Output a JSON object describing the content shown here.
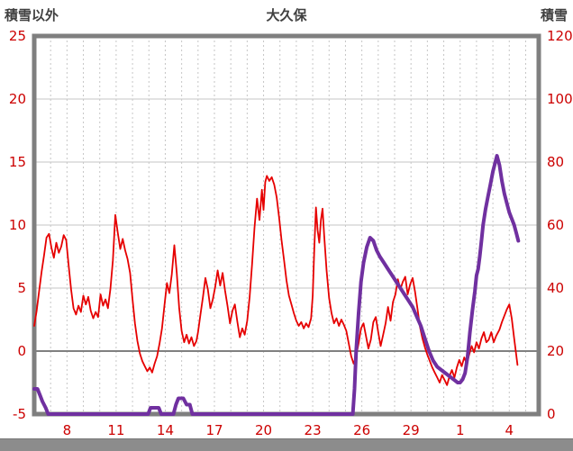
{
  "header": {
    "left_axis_title": "積雪以外",
    "title": "大久保",
    "right_axis_title": "積雪"
  },
  "chart_data": {
    "type": "line",
    "title": "大久保",
    "grid": true,
    "legend": "none",
    "x_axis": {
      "min": 6,
      "max": 36.8,
      "gridline_step_days": 1,
      "tick_labels": [
        {
          "day": 8,
          "label": "8"
        },
        {
          "day": 11,
          "label": "11"
        },
        {
          "day": 14,
          "label": "14"
        },
        {
          "day": 17,
          "label": "17"
        },
        {
          "day": 20,
          "label": "20"
        },
        {
          "day": 23,
          "label": "23"
        },
        {
          "day": 26,
          "label": "26"
        },
        {
          "day": 29,
          "label": "29"
        },
        {
          "day": 32,
          "label": "1"
        },
        {
          "day": 35,
          "label": "4"
        }
      ]
    },
    "left_axis": {
      "title": "積雪以外",
      "min": -5,
      "max": 25,
      "ticks": [
        -5,
        0,
        5,
        10,
        15,
        20,
        25
      ]
    },
    "right_axis": {
      "title": "積雪",
      "min": 0,
      "max": 120,
      "ticks": [
        0,
        20,
        40,
        60,
        80,
        100,
        120
      ]
    },
    "colors": {
      "grid": "#c6c6c6",
      "zero_line": "#808080",
      "border": "#7f7f7f",
      "tick_text": "#cc0000",
      "temperature_line": "#e60000",
      "snow_line": "#7030a0"
    },
    "series": [
      {
        "id": "temperature",
        "name": "積雪以外",
        "axis": "left",
        "color": "#e60000",
        "width": 1.8,
        "points": [
          [
            6.0,
            2.0
          ],
          [
            6.15,
            3.2
          ],
          [
            6.3,
            4.8
          ],
          [
            6.45,
            6.3
          ],
          [
            6.6,
            7.6
          ],
          [
            6.75,
            9.0
          ],
          [
            6.9,
            9.3
          ],
          [
            7.05,
            8.2
          ],
          [
            7.2,
            7.4
          ],
          [
            7.35,
            8.6
          ],
          [
            7.5,
            7.8
          ],
          [
            7.65,
            8.3
          ],
          [
            7.8,
            9.2
          ],
          [
            7.95,
            8.8
          ],
          [
            8.1,
            6.8
          ],
          [
            8.25,
            4.9
          ],
          [
            8.4,
            3.4
          ],
          [
            8.55,
            2.9
          ],
          [
            8.7,
            3.6
          ],
          [
            8.85,
            3.1
          ],
          [
            9.0,
            4.4
          ],
          [
            9.15,
            3.7
          ],
          [
            9.3,
            4.3
          ],
          [
            9.45,
            3.2
          ],
          [
            9.6,
            2.6
          ],
          [
            9.75,
            3.1
          ],
          [
            9.9,
            2.7
          ],
          [
            10.05,
            4.5
          ],
          [
            10.2,
            3.6
          ],
          [
            10.35,
            4.1
          ],
          [
            10.5,
            3.4
          ],
          [
            10.65,
            4.9
          ],
          [
            10.8,
            7.2
          ],
          [
            10.95,
            10.8
          ],
          [
            11.1,
            9.4
          ],
          [
            11.25,
            8.1
          ],
          [
            11.4,
            8.9
          ],
          [
            11.55,
            8.0
          ],
          [
            11.7,
            7.3
          ],
          [
            11.85,
            6.2
          ],
          [
            12.0,
            4.1
          ],
          [
            12.15,
            2.2
          ],
          [
            12.3,
            0.8
          ],
          [
            12.45,
            -0.2
          ],
          [
            12.6,
            -0.8
          ],
          [
            12.75,
            -1.2
          ],
          [
            12.9,
            -1.6
          ],
          [
            13.05,
            -1.3
          ],
          [
            13.2,
            -1.7
          ],
          [
            13.35,
            -1.0
          ],
          [
            13.5,
            -0.4
          ],
          [
            13.65,
            0.6
          ],
          [
            13.8,
            1.8
          ],
          [
            13.95,
            3.6
          ],
          [
            14.1,
            5.4
          ],
          [
            14.25,
            4.6
          ],
          [
            14.4,
            6.1
          ],
          [
            14.55,
            8.4
          ],
          [
            14.7,
            6.2
          ],
          [
            14.85,
            3.4
          ],
          [
            15.0,
            1.6
          ],
          [
            15.15,
            0.7
          ],
          [
            15.3,
            1.3
          ],
          [
            15.45,
            0.6
          ],
          [
            15.6,
            1.1
          ],
          [
            15.75,
            0.4
          ],
          [
            15.9,
            0.8
          ],
          [
            16.0,
            1.5
          ],
          [
            16.15,
            2.9
          ],
          [
            16.3,
            4.3
          ],
          [
            16.45,
            5.8
          ],
          [
            16.6,
            4.9
          ],
          [
            16.75,
            3.4
          ],
          [
            16.9,
            4.1
          ],
          [
            17.05,
            5.1
          ],
          [
            17.2,
            6.4
          ],
          [
            17.35,
            5.2
          ],
          [
            17.5,
            6.2
          ],
          [
            17.65,
            4.8
          ],
          [
            17.8,
            3.6
          ],
          [
            17.95,
            2.2
          ],
          [
            18.1,
            3.2
          ],
          [
            18.25,
            3.7
          ],
          [
            18.4,
            2.3
          ],
          [
            18.55,
            1.1
          ],
          [
            18.7,
            1.8
          ],
          [
            18.85,
            1.3
          ],
          [
            19.0,
            2.4
          ],
          [
            19.15,
            4.3
          ],
          [
            19.3,
            6.9
          ],
          [
            19.45,
            9.8
          ],
          [
            19.6,
            12.1
          ],
          [
            19.75,
            10.4
          ],
          [
            19.9,
            12.8
          ],
          [
            20.0,
            11.2
          ],
          [
            20.1,
            13.4
          ],
          [
            20.2,
            13.9
          ],
          [
            20.35,
            13.5
          ],
          [
            20.5,
            13.8
          ],
          [
            20.65,
            13.2
          ],
          [
            20.8,
            12.2
          ],
          [
            20.95,
            10.6
          ],
          [
            21.1,
            8.8
          ],
          [
            21.25,
            7.2
          ],
          [
            21.4,
            5.6
          ],
          [
            21.55,
            4.4
          ],
          [
            21.7,
            3.7
          ],
          [
            21.85,
            3.0
          ],
          [
            22.0,
            2.4
          ],
          [
            22.15,
            2.0
          ],
          [
            22.3,
            2.3
          ],
          [
            22.45,
            1.8
          ],
          [
            22.6,
            2.2
          ],
          [
            22.75,
            1.9
          ],
          [
            22.9,
            2.6
          ],
          [
            23.0,
            4.4
          ],
          [
            23.1,
            8.2
          ],
          [
            23.2,
            11.4
          ],
          [
            23.3,
            9.6
          ],
          [
            23.4,
            8.6
          ],
          [
            23.5,
            10.4
          ],
          [
            23.6,
            11.3
          ],
          [
            23.7,
            9.2
          ],
          [
            23.85,
            6.4
          ],
          [
            24.0,
            4.2
          ],
          [
            24.15,
            3.0
          ],
          [
            24.3,
            2.2
          ],
          [
            24.45,
            2.6
          ],
          [
            24.6,
            2.0
          ],
          [
            24.75,
            2.5
          ],
          [
            24.9,
            2.1
          ],
          [
            25.05,
            1.6
          ],
          [
            25.2,
            0.6
          ],
          [
            25.35,
            -0.4
          ],
          [
            25.5,
            -1.0
          ],
          [
            25.65,
            -0.4
          ],
          [
            25.8,
            0.6
          ],
          [
            25.95,
            1.8
          ],
          [
            26.1,
            2.2
          ],
          [
            26.25,
            1.2
          ],
          [
            26.4,
            0.2
          ],
          [
            26.55,
            0.9
          ],
          [
            26.7,
            2.3
          ],
          [
            26.85,
            2.7
          ],
          [
            27.0,
            1.5
          ],
          [
            27.15,
            0.4
          ],
          [
            27.3,
            1.3
          ],
          [
            27.45,
            2.2
          ],
          [
            27.6,
            3.5
          ],
          [
            27.75,
            2.4
          ],
          [
            27.9,
            3.9
          ],
          [
            28.05,
            4.5
          ],
          [
            28.2,
            5.7
          ],
          [
            28.35,
            4.9
          ],
          [
            28.5,
            5.5
          ],
          [
            28.65,
            5.9
          ],
          [
            28.8,
            4.5
          ],
          [
            28.95,
            5.3
          ],
          [
            29.1,
            5.8
          ],
          [
            29.25,
            4.7
          ],
          [
            29.4,
            3.3
          ],
          [
            29.55,
            1.9
          ],
          [
            29.7,
            1.0
          ],
          [
            29.85,
            0.3
          ],
          [
            30.0,
            -0.3
          ],
          [
            30.15,
            -0.8
          ],
          [
            30.3,
            -1.3
          ],
          [
            30.45,
            -1.7
          ],
          [
            30.6,
            -2.1
          ],
          [
            30.75,
            -2.5
          ],
          [
            30.9,
            -1.9
          ],
          [
            31.05,
            -2.3
          ],
          [
            31.2,
            -2.7
          ],
          [
            31.35,
            -2.0
          ],
          [
            31.5,
            -1.5
          ],
          [
            31.65,
            -2.1
          ],
          [
            31.8,
            -1.3
          ],
          [
            31.95,
            -0.7
          ],
          [
            32.1,
            -1.2
          ],
          [
            32.25,
            -0.5
          ],
          [
            32.4,
            -1.0
          ],
          [
            32.55,
            -0.3
          ],
          [
            32.7,
            0.4
          ],
          [
            32.85,
            -0.1
          ],
          [
            33.0,
            0.7
          ],
          [
            33.15,
            0.2
          ],
          [
            33.3,
            1.0
          ],
          [
            33.45,
            1.5
          ],
          [
            33.6,
            0.7
          ],
          [
            33.75,
            0.9
          ],
          [
            33.9,
            1.5
          ],
          [
            34.05,
            0.7
          ],
          [
            34.2,
            1.2
          ],
          [
            34.4,
            1.7
          ],
          [
            34.55,
            2.3
          ],
          [
            34.7,
            2.8
          ],
          [
            34.85,
            3.3
          ],
          [
            35.0,
            3.7
          ],
          [
            35.15,
            2.6
          ],
          [
            35.3,
            1.0
          ],
          [
            35.5,
            -1.1
          ]
        ]
      },
      {
        "id": "snow-depth",
        "name": "積雪",
        "axis": "right",
        "color": "#7030a0",
        "width": 4,
        "points": [
          [
            6.0,
            8
          ],
          [
            6.2,
            8
          ],
          [
            6.35,
            6
          ],
          [
            6.5,
            4
          ],
          [
            6.7,
            2
          ],
          [
            6.85,
            0
          ],
          [
            12.95,
            0
          ],
          [
            13.1,
            2
          ],
          [
            13.6,
            2
          ],
          [
            13.75,
            0
          ],
          [
            14.5,
            0
          ],
          [
            14.65,
            3
          ],
          [
            14.8,
            5
          ],
          [
            15.1,
            5
          ],
          [
            15.3,
            3
          ],
          [
            15.5,
            3
          ],
          [
            15.65,
            0
          ],
          [
            25.45,
            0
          ],
          [
            25.55,
            8
          ],
          [
            25.65,
            20
          ],
          [
            25.8,
            32
          ],
          [
            25.95,
            42
          ],
          [
            26.1,
            48
          ],
          [
            26.3,
            53
          ],
          [
            26.5,
            56
          ],
          [
            26.7,
            55
          ],
          [
            26.9,
            52
          ],
          [
            27.1,
            50
          ],
          [
            27.35,
            48
          ],
          [
            27.6,
            46
          ],
          [
            27.85,
            44
          ],
          [
            28.1,
            42
          ],
          [
            28.35,
            40
          ],
          [
            28.6,
            38
          ],
          [
            28.85,
            36
          ],
          [
            29.1,
            34
          ],
          [
            29.35,
            31
          ],
          [
            29.6,
            28
          ],
          [
            29.85,
            24
          ],
          [
            30.1,
            20
          ],
          [
            30.35,
            17
          ],
          [
            30.6,
            15
          ],
          [
            30.85,
            14
          ],
          [
            31.1,
            13
          ],
          [
            31.35,
            12
          ],
          [
            31.6,
            11
          ],
          [
            31.85,
            10
          ],
          [
            32.0,
            10
          ],
          [
            32.15,
            11
          ],
          [
            32.3,
            13
          ],
          [
            32.45,
            18
          ],
          [
            32.6,
            26
          ],
          [
            32.75,
            33
          ],
          [
            32.9,
            39
          ],
          [
            33.0,
            44
          ],
          [
            33.1,
            46
          ],
          [
            33.2,
            50
          ],
          [
            33.3,
            55
          ],
          [
            33.4,
            60
          ],
          [
            33.55,
            65
          ],
          [
            33.7,
            69
          ],
          [
            33.85,
            73
          ],
          [
            34.0,
            77
          ],
          [
            34.15,
            80
          ],
          [
            34.25,
            82
          ],
          [
            34.4,
            79
          ],
          [
            34.55,
            74
          ],
          [
            34.7,
            70
          ],
          [
            34.85,
            67
          ],
          [
            35.0,
            64
          ],
          [
            35.15,
            62
          ],
          [
            35.3,
            60
          ],
          [
            35.45,
            57
          ],
          [
            35.55,
            55
          ]
        ]
      }
    ]
  }
}
